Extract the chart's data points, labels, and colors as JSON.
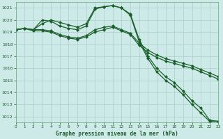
{
  "title": "Graphe pression niveau de la mer (hPa)",
  "bg_color": "#ceeae8",
  "grid_color": "#a8cfc8",
  "line_color": "#1a5e2a",
  "xlim": [
    0,
    23
  ],
  "ylim": [
    1011.5,
    1021.5
  ],
  "yticks": [
    1012,
    1013,
    1014,
    1015,
    1016,
    1017,
    1018,
    1019,
    1020,
    1021
  ],
  "xticks": [
    0,
    1,
    2,
    3,
    4,
    5,
    6,
    7,
    8,
    9,
    10,
    11,
    12,
    13,
    14,
    15,
    16,
    17,
    18,
    19,
    20,
    21,
    22,
    23
  ],
  "series": [
    [
      1019.2,
      1019.3,
      1019.2,
      1020.0,
      1019.9,
      1019.5,
      1019.3,
      1019.2,
      1019.5,
      1020.9,
      1021.1,
      1021.2,
      1021.0,
      1020.4,
      1018.2,
      1016.8,
      1015.7,
      1015.0,
      1014.5,
      1013.8,
      1013.0,
      1012.3,
      1011.6,
      1011.6
    ],
    [
      1019.2,
      1019.3,
      1019.2,
      1019.7,
      1020.0,
      1019.8,
      1019.6,
      1019.4,
      1019.7,
      1021.0,
      1021.1,
      1021.2,
      1021.0,
      1020.5,
      1018.4,
      1017.0,
      1016.0,
      1015.3,
      1014.8,
      1014.1,
      1013.3,
      1012.7,
      1011.7,
      1011.6
    ],
    [
      1019.2,
      1019.3,
      1019.1,
      1019.1,
      1019.0,
      1018.7,
      1018.5,
      1018.4,
      1018.6,
      1019.0,
      1019.2,
      1019.4,
      1019.1,
      1018.8,
      1017.9,
      1017.3,
      1016.9,
      1016.6,
      1016.4,
      1016.2,
      1016.0,
      1015.7,
      1015.4,
      1015.1
    ],
    [
      1019.2,
      1019.3,
      1019.2,
      1019.2,
      1019.1,
      1018.8,
      1018.6,
      1018.5,
      1018.7,
      1019.2,
      1019.4,
      1019.5,
      1019.2,
      1018.9,
      1018.1,
      1017.5,
      1017.1,
      1016.8,
      1016.6,
      1016.4,
      1016.2,
      1015.9,
      1015.6,
      1015.3
    ]
  ]
}
